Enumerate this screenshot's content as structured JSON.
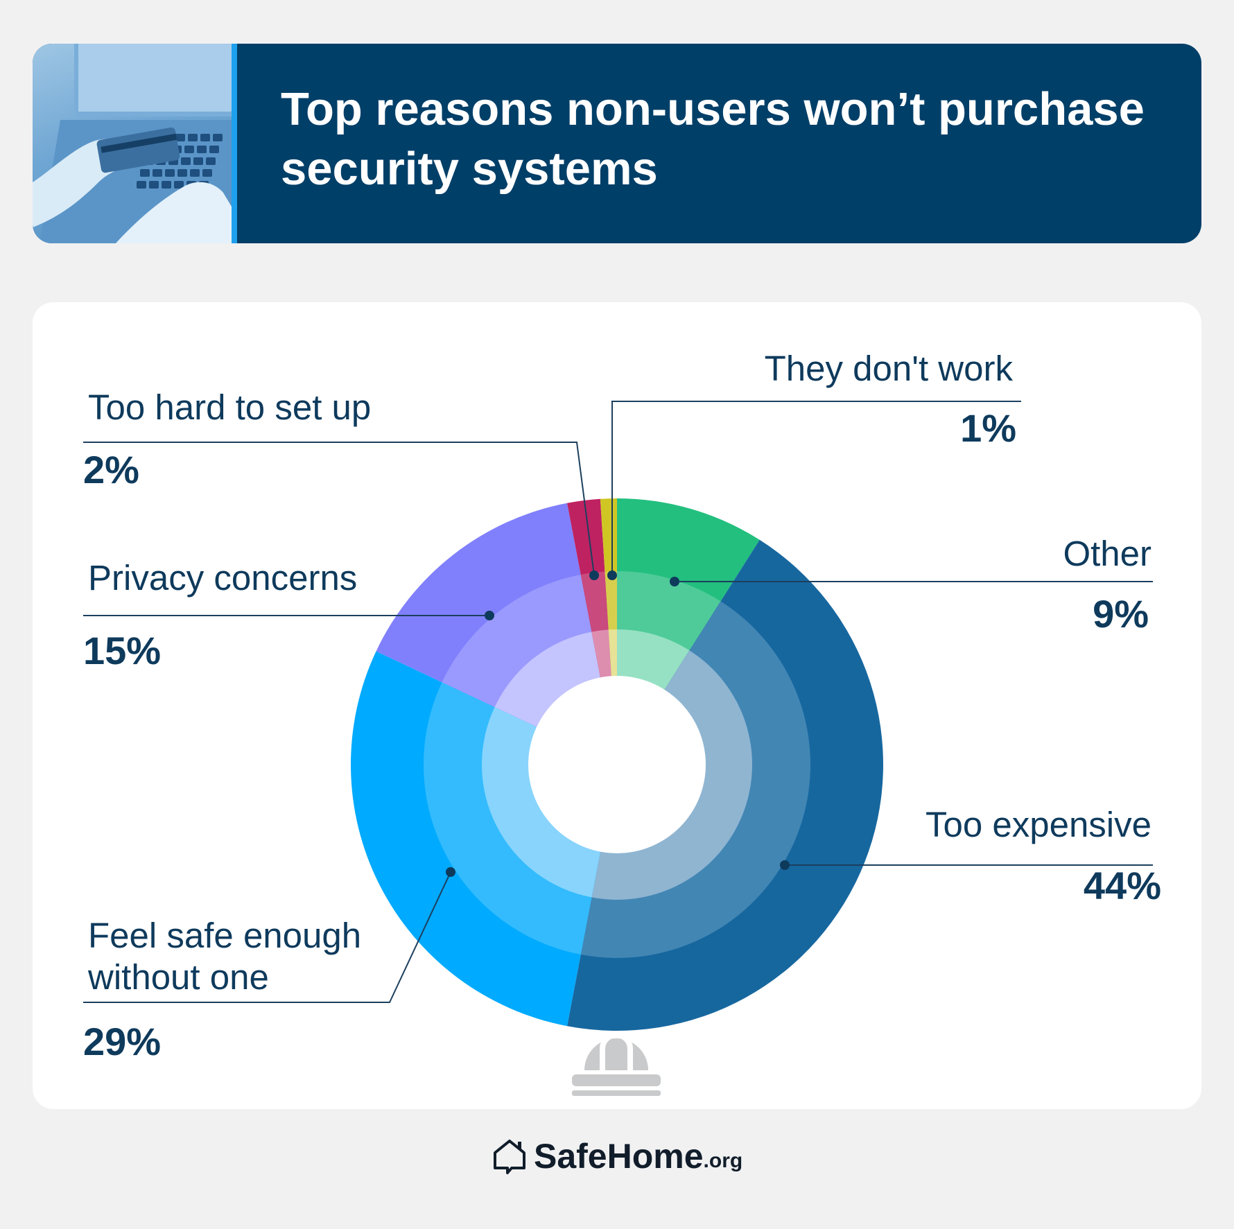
{
  "header": {
    "title": "Top reasons non-users won’t purchase security systems"
  },
  "icons": {
    "center": "security-camera-icon",
    "photo": "laptop-credit-card-photo",
    "logo": "house-chat-icon"
  },
  "footer": {
    "brand": "SafeHome",
    "suffix": ".org"
  },
  "colors": {
    "header_bg": "#003f68",
    "page_bg": "#f1f1f2",
    "text": "#0e3a5c"
  },
  "chart_data": {
    "type": "pie",
    "variant": "donut",
    "start": "top",
    "direction": "clockwise",
    "slices": [
      {
        "label": "Other",
        "value": 9,
        "value_label": "9%",
        "colors": [
          "#23bf7f",
          "#4fcb99",
          "#96e1c3"
        ]
      },
      {
        "label": "Too expensive",
        "value": 44,
        "value_label": "44%",
        "colors": [
          "#17679f",
          "#4286b4",
          "#8fb5d1"
        ]
      },
      {
        "label": "Feel safe enough without one",
        "value": 29,
        "value_label": "29%",
        "colors": [
          "#00aafe",
          "#33bbfd",
          "#88d4fd"
        ]
      },
      {
        "label": "Privacy concerns",
        "value": 15,
        "value_label": "15%",
        "colors": [
          "#8080fd",
          "#9a99fd",
          "#c4c4fe"
        ]
      },
      {
        "label": "Too hard to set up",
        "value": 2,
        "value_label": "2%",
        "colors": [
          "#bf2261",
          "#c94a7d",
          "#dd8eaf"
        ]
      },
      {
        "label": "They don't work",
        "value": 1,
        "value_label": "1%",
        "colors": [
          "#cfc624",
          "#d6cf4e",
          "#e6e296"
        ]
      }
    ]
  }
}
